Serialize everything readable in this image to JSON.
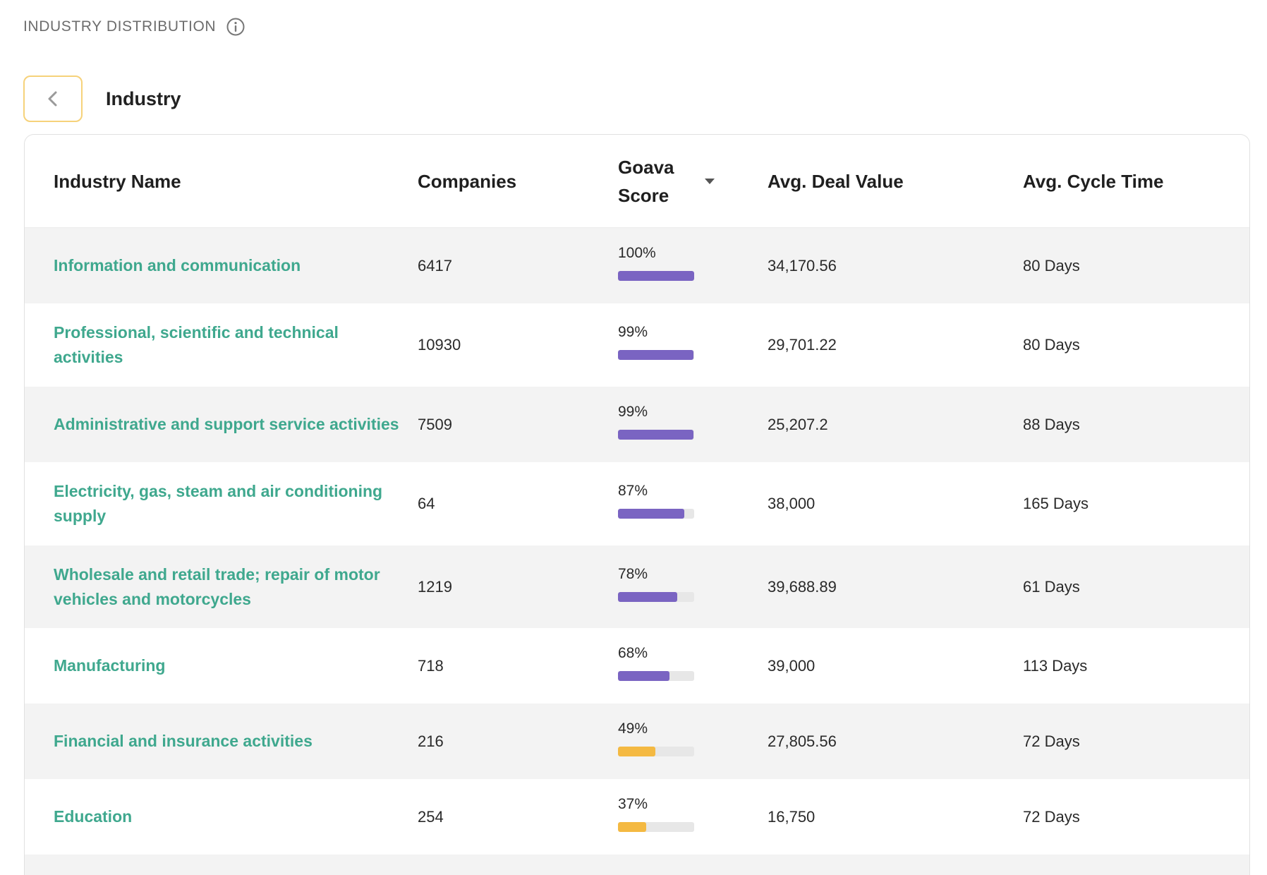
{
  "section": {
    "title": "INDUSTRY DISTRIBUTION",
    "info_icon": "info-icon"
  },
  "nav": {
    "back_icon": "chevron-left-icon",
    "title": "Industry"
  },
  "table": {
    "columns": {
      "industry_name": "Industry Name",
      "companies": "Companies",
      "goava_score": "Goava Score",
      "avg_deal_value": "Avg. Deal Value",
      "avg_cycle_time": "Avg. Cycle Time"
    },
    "sort_icon": "caret-down-icon",
    "colors": {
      "high": "#7a64c2",
      "low": "#f4b942"
    },
    "rows": [
      {
        "name": "Information and communication",
        "companies": "6417",
        "score": 100,
        "score_label": "100%",
        "deal_value": "34,170.56",
        "cycle_time": "80 Days"
      },
      {
        "name": "Professional, scientific and technical activities",
        "companies": "10930",
        "score": 99,
        "score_label": "99%",
        "deal_value": "29,701.22",
        "cycle_time": "80 Days"
      },
      {
        "name": "Administrative and support service activities",
        "companies": "7509",
        "score": 99,
        "score_label": "99%",
        "deal_value": "25,207.2",
        "cycle_time": "88 Days"
      },
      {
        "name": "Electricity, gas, steam and air conditioning supply",
        "companies": "64",
        "score": 87,
        "score_label": "87%",
        "deal_value": "38,000",
        "cycle_time": "165 Days"
      },
      {
        "name": "Wholesale and retail trade; repair of motor vehicles and motorcycles",
        "companies": "1219",
        "score": 78,
        "score_label": "78%",
        "deal_value": "39,688.89",
        "cycle_time": "61 Days"
      },
      {
        "name": "Manufacturing",
        "companies": "718",
        "score": 68,
        "score_label": "68%",
        "deal_value": "39,000",
        "cycle_time": "113 Days"
      },
      {
        "name": "Financial and insurance activities",
        "companies": "216",
        "score": 49,
        "score_label": "49%",
        "deal_value": "27,805.56",
        "cycle_time": "72 Days"
      },
      {
        "name": "Education",
        "companies": "254",
        "score": 37,
        "score_label": "37%",
        "deal_value": "16,750",
        "cycle_time": "72 Days"
      }
    ]
  }
}
